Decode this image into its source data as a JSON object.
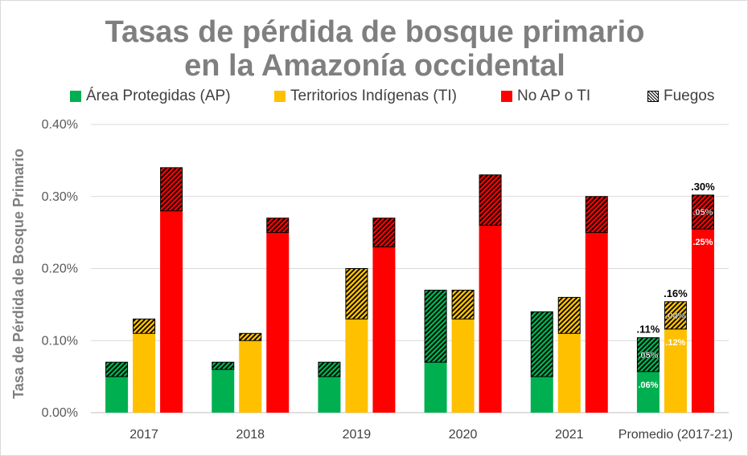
{
  "title_line1": "Tasas de pérdida de bosque primario",
  "title_line2": "en la Amazonía occidental",
  "legend": {
    "ap": "Área Protegidas (AP)",
    "ti": "Territorios Indígenas (TI)",
    "noap": "No AP o TI",
    "fire": "Fuegos"
  },
  "colors": {
    "ap": "#00b050",
    "ti": "#ffc000",
    "noap": "#ff0000",
    "hatch": "#000000",
    "grid": "#d9d9d9"
  },
  "chart_data": {
    "type": "bar",
    "stacked": true,
    "title": "Tasas de pérdida de bosque primario en la Amazonía occidental",
    "ylabel": "Tasa de Pérdida de Bosque Primario",
    "xlabel": "",
    "ylim": [
      0,
      0.004
    ],
    "yticks": [
      "0.00%",
      "0.10%",
      "0.20%",
      "0.30%",
      "0.40%"
    ],
    "categories": [
      "2017",
      "2018",
      "2019",
      "2020",
      "2021",
      "Promedio (2017-21)"
    ],
    "series": [
      {
        "name": "Área Protegidas (AP)",
        "key": "ap",
        "base": [
          0.0005,
          0.0006,
          0.0005,
          0.0007,
          0.0005,
          0.00057
        ],
        "fire": [
          0.0002,
          0.0001,
          0.0002,
          0.001,
          0.0009,
          0.00047
        ]
      },
      {
        "name": "Territorios Indígenas (TI)",
        "key": "ti",
        "base": [
          0.0011,
          0.001,
          0.0013,
          0.0013,
          0.0011,
          0.00116
        ],
        "fire": [
          0.0002,
          0.0001,
          0.0007,
          0.0004,
          0.0005,
          0.00038
        ]
      },
      {
        "name": "No AP o TI",
        "key": "noap",
        "base": [
          0.0028,
          0.0025,
          0.0023,
          0.0026,
          0.0025,
          0.00255
        ],
        "fire": [
          0.0006,
          0.0002,
          0.0004,
          0.0007,
          0.0005,
          0.00047
        ]
      }
    ],
    "annotations": {
      "ap": {
        "base": ".06%",
        "fire": ".05%",
        "total": ".11%"
      },
      "ti": {
        "base": ".12%",
        "fire": ".04%",
        "total": ".16%"
      },
      "noap": {
        "base": ".25%",
        "fire": ".05%",
        "total": ".30%"
      }
    },
    "annotated_category": "Promedio (2017-21)"
  }
}
